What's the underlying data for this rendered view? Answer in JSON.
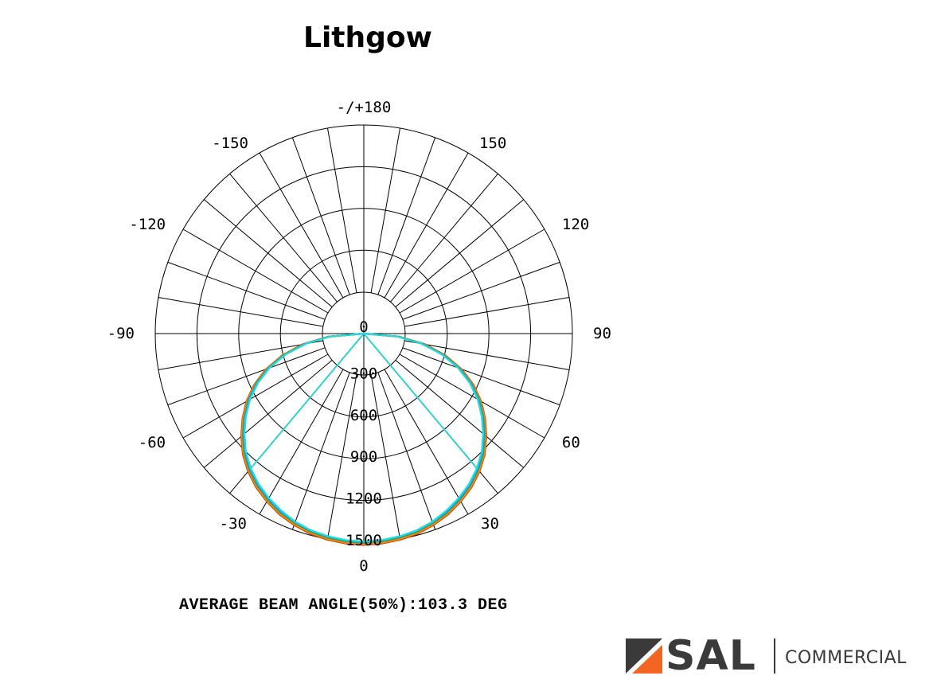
{
  "title": "Lithgow",
  "chart_data": {
    "type": "polar",
    "angle_labels": [
      {
        "label": "-/+180",
        "deg": 180
      },
      {
        "label": "150",
        "deg": 150
      },
      {
        "label": "120",
        "deg": 120
      },
      {
        "label": "90",
        "deg": 90
      },
      {
        "label": "60",
        "deg": 60
      },
      {
        "label": "30",
        "deg": 30
      },
      {
        "label": "0",
        "deg": 0
      },
      {
        "label": "-30",
        "deg": -30
      },
      {
        "label": "-60",
        "deg": -60
      },
      {
        "label": "-90",
        "deg": -90
      },
      {
        "label": "-120",
        "deg": -120
      },
      {
        "label": "-150",
        "deg": -150
      }
    ],
    "center_label": "0",
    "radial_ticks": [
      "300",
      "600",
      "900",
      "1200",
      "1500"
    ],
    "radial_max": 1500,
    "radial_step": 300,
    "spoke_step_deg": 10,
    "series": [
      {
        "color": "#cc3300",
        "points": [
          [
            0,
            1520
          ],
          [
            5,
            1515
          ],
          [
            10,
            1505
          ],
          [
            15,
            1490
          ],
          [
            20,
            1465
          ],
          [
            25,
            1435
          ],
          [
            30,
            1395
          ],
          [
            35,
            1350
          ],
          [
            40,
            1295
          ],
          [
            45,
            1230
          ],
          [
            50,
            1150
          ],
          [
            55,
            1065
          ],
          [
            60,
            975
          ],
          [
            65,
            870
          ],
          [
            70,
            750
          ],
          [
            75,
            610
          ],
          [
            80,
            450
          ],
          [
            85,
            260
          ],
          [
            90,
            0
          ]
        ]
      },
      {
        "color": "#ff8800",
        "points": [
          [
            0,
            1515
          ],
          [
            5,
            1510
          ],
          [
            10,
            1500
          ],
          [
            15,
            1485
          ],
          [
            20,
            1460
          ],
          [
            25,
            1430
          ],
          [
            30,
            1390
          ],
          [
            35,
            1345
          ],
          [
            40,
            1290
          ],
          [
            45,
            1225
          ],
          [
            50,
            1145
          ],
          [
            55,
            1060
          ],
          [
            60,
            970
          ],
          [
            65,
            865
          ],
          [
            70,
            745
          ],
          [
            75,
            605
          ],
          [
            80,
            445
          ],
          [
            85,
            255
          ],
          [
            90,
            0
          ]
        ]
      },
      {
        "color": "#33aa33",
        "points": [
          [
            0,
            1505
          ],
          [
            5,
            1500
          ],
          [
            10,
            1490
          ],
          [
            15,
            1475
          ],
          [
            20,
            1450
          ],
          [
            25,
            1420
          ],
          [
            30,
            1380
          ],
          [
            35,
            1335
          ],
          [
            40,
            1280
          ],
          [
            45,
            1215
          ],
          [
            50,
            1135
          ],
          [
            55,
            1050
          ],
          [
            60,
            960
          ],
          [
            65,
            855
          ],
          [
            70,
            735
          ],
          [
            75,
            595
          ],
          [
            80,
            435
          ],
          [
            85,
            250
          ],
          [
            90,
            0
          ]
        ]
      },
      {
        "color": "#2299dd",
        "points": [
          [
            0,
            1500
          ],
          [
            5,
            1495
          ],
          [
            10,
            1485
          ],
          [
            15,
            1470
          ],
          [
            20,
            1445
          ],
          [
            25,
            1415
          ],
          [
            30,
            1375
          ],
          [
            35,
            1330
          ],
          [
            40,
            1275
          ],
          [
            45,
            1210
          ],
          [
            50,
            1130
          ],
          [
            55,
            1045
          ],
          [
            60,
            955
          ],
          [
            65,
            850
          ],
          [
            70,
            730
          ],
          [
            75,
            590
          ],
          [
            80,
            430
          ],
          [
            85,
            245
          ],
          [
            90,
            0
          ]
        ]
      },
      {
        "color": "#22dddd",
        "points": [
          [
            0,
            1495
          ],
          [
            5,
            1490
          ],
          [
            10,
            1480
          ],
          [
            15,
            1465
          ],
          [
            20,
            1440
          ],
          [
            25,
            1405
          ],
          [
            30,
            1365
          ],
          [
            35,
            1320
          ],
          [
            40,
            1265
          ],
          [
            45,
            1200
          ],
          [
            50,
            1120
          ],
          [
            55,
            1035
          ],
          [
            60,
            945
          ],
          [
            65,
            840
          ],
          [
            70,
            720
          ],
          [
            75,
            580
          ],
          [
            80,
            420
          ],
          [
            85,
            240
          ],
          [
            90,
            0
          ]
        ]
      }
    ],
    "note": "AVERAGE BEAM ANGLE(50%):103.3 DEG"
  },
  "logo": {
    "brand": "SAL",
    "division": "COMMERCIAL",
    "colors": {
      "text": "#3a3a3a",
      "accent": "#f26522"
    }
  }
}
